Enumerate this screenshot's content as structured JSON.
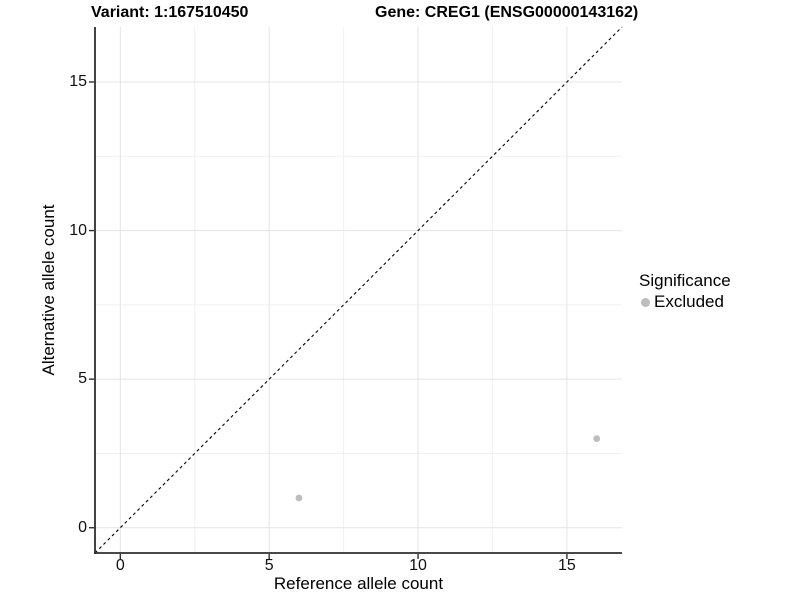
{
  "figure": {
    "title_variant": "Variant: 1:167510450",
    "title_gene": "Gene: CREG1 (ENSG00000143162)"
  },
  "axes": {
    "x": {
      "label": "Reference allele count",
      "tick_labels": [
        "0",
        "5",
        "10",
        "15"
      ]
    },
    "y": {
      "label": "Alternative allele count",
      "tick_labels": [
        "0",
        "5",
        "10",
        "15"
      ]
    }
  },
  "legend": {
    "title": "Significance",
    "items": [
      {
        "label": "Excluded",
        "color": "#bdbdbd"
      }
    ]
  },
  "colors": {
    "point": "#bdbdbd",
    "grid_major": "#e4e4e4",
    "grid_minor": "#f1f1f1",
    "axis_line": "#2e2e2e",
    "identity_line": "#000000",
    "background": "#ffffff"
  },
  "chart_data": {
    "type": "scatter",
    "title": "Variant: 1:167510450  |  Gene: CREG1 (ENSG00000143162)",
    "xlabel": "Reference allele count",
    "ylabel": "Alternative allele count",
    "xlim": [
      -0.85,
      16.85
    ],
    "ylim": [
      -0.85,
      16.85
    ],
    "x_major_ticks": [
      0,
      5,
      10,
      15
    ],
    "y_major_ticks": [
      0,
      5,
      10,
      15
    ],
    "x_minor_ticks": [
      2.5,
      7.5,
      12.5
    ],
    "y_minor_ticks": [
      2.5,
      7.5,
      12.5
    ],
    "grid": true,
    "legend_position": "right",
    "identity_line": {
      "style": "dashed",
      "slope": 1,
      "intercept": 0
    },
    "series": [
      {
        "name": "Excluded",
        "color": "#bdbdbd",
        "points": [
          {
            "x": 6,
            "y": 1
          },
          {
            "x": 16,
            "y": 3
          }
        ]
      }
    ]
  }
}
